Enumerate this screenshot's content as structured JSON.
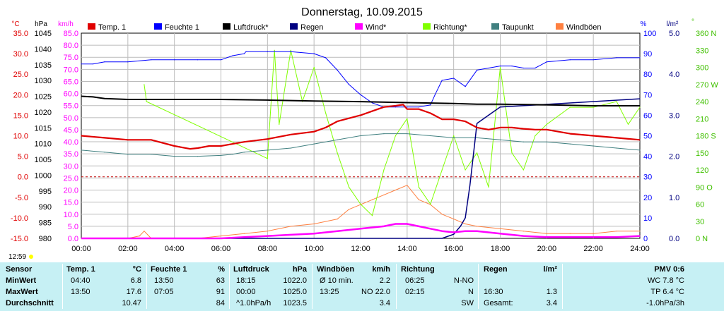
{
  "title": "Donnerstag, 10.09.2015",
  "left_units": {
    "temp": "°C",
    "pressure": "hPa",
    "wind": "km/h"
  },
  "right_units": {
    "humidity": "%",
    "rain": "l/m²",
    "direction": "°"
  },
  "time_ticks": [
    "00:00",
    "02:00",
    "04:00",
    "06:00",
    "08:00",
    "10:00",
    "12:00",
    "14:00",
    "16:00",
    "18:00",
    "20:00",
    "22:00",
    "24:00"
  ],
  "current_time": "12:59",
  "axis_ticks": {
    "temp": [
      "35.0",
      "30.0",
      "25.0",
      "20.0",
      "15.0",
      "10.0",
      "5.0",
      "0.0",
      "-5.0",
      "-10.0",
      "-15.0"
    ],
    "pressure": [
      "1045",
      "1040",
      "1035",
      "1030",
      "1025",
      "1020",
      "1015",
      "1010",
      "1005",
      "1000",
      "995",
      "990",
      "985",
      "980"
    ],
    "wind": [
      "85.0",
      "80.0",
      "75.0",
      "70.0",
      "65.0",
      "60.0",
      "55.0",
      "50.0",
      "45.0",
      "40.0",
      "35.0",
      "30.0",
      "25.0",
      "20.0",
      "15.0",
      "10.0",
      "5.0",
      "0.0"
    ],
    "humidity": [
      "100",
      "90",
      "80",
      "70",
      "60",
      "50",
      "40",
      "30",
      "20",
      "10",
      "0"
    ],
    "rain": [
      "5.0",
      "4.0",
      "3.0",
      "2.0",
      "1.0",
      "0.0"
    ],
    "direction": [
      "360 N",
      "330",
      "300",
      "270 W",
      "240",
      "210",
      "180 S",
      "150",
      "120",
      "90 O",
      "60",
      "30",
      "0 N"
    ]
  },
  "legend": [
    {
      "label": "Temp. 1",
      "color": "#e00000"
    },
    {
      "label": "Feuchte 1",
      "color": "#0000ff"
    },
    {
      "label": "Luftdruck*",
      "color": "#000000"
    },
    {
      "label": "Regen",
      "color": "#000080"
    },
    {
      "label": "Wind*",
      "color": "#ff00ff"
    },
    {
      "label": "Richtung*",
      "color": "#80ff00"
    },
    {
      "label": "Taupunkt",
      "color": "#408080"
    },
    {
      "label": "Windböen",
      "color": "#ff8040"
    }
  ],
  "colors": {
    "temp_axis": "#e00000",
    "wind_axis": "#ff00ff",
    "humidity_axis": "#0000ff",
    "rain_axis": "#000080",
    "direction_axis": "#40c000",
    "stats_bg": "#c6f0f4"
  },
  "chart_data": {
    "type": "line",
    "x_unit": "hour",
    "xlim": [
      0,
      24
    ],
    "series": [
      {
        "name": "Temp. 1",
        "axis": "temp",
        "ylim": [
          -15,
          35
        ],
        "x": [
          0,
          1,
          2,
          3,
          4,
          4.67,
          5,
          5.5,
          6,
          6.5,
          7,
          8,
          9,
          10,
          10.5,
          11,
          12,
          12.5,
          13,
          13.5,
          13.83,
          14,
          14.5,
          15,
          15.5,
          16,
          16.5,
          17,
          17.5,
          18,
          18.5,
          19,
          19.5,
          20,
          21,
          22,
          23,
          24
        ],
        "y": [
          10.0,
          9.5,
          9.0,
          9.0,
          7.5,
          6.8,
          7.0,
          7.5,
          7.5,
          8.0,
          8.5,
          9.2,
          10.3,
          11.0,
          12.0,
          13.5,
          15.0,
          16.0,
          17.0,
          17.3,
          17.6,
          16.5,
          16.5,
          15.5,
          14.0,
          14.0,
          13.5,
          12.0,
          11.5,
          12.0,
          12.0,
          11.7,
          11.5,
          11.5,
          10.5,
          10.0,
          9.5,
          9.0
        ]
      },
      {
        "name": "Feuchte 1",
        "axis": "humidity",
        "ylim": [
          0,
          100
        ],
        "x": [
          0,
          0.5,
          1,
          2,
          3,
          4,
          5,
          6,
          6.5,
          7,
          7.08,
          8,
          9,
          10,
          10.5,
          11,
          11.5,
          12,
          12.5,
          13,
          13.5,
          14,
          14.5,
          15,
          15.2,
          15.5,
          16,
          16.5,
          17,
          17.5,
          18,
          18.5,
          19,
          19.5,
          20,
          21,
          22,
          23,
          24
        ],
        "y": [
          85,
          85,
          86,
          86,
          87,
          87,
          87,
          87,
          89,
          90,
          91,
          91,
          91,
          90,
          88,
          82,
          75,
          70,
          66,
          64,
          64,
          64,
          64,
          65,
          70,
          77,
          78,
          74,
          82,
          83,
          84,
          84,
          83,
          83,
          86,
          87,
          87,
          88,
          88
        ]
      },
      {
        "name": "Luftdruck*",
        "axis": "pressure",
        "ylim": [
          980,
          1045
        ],
        "x": [
          0,
          0.5,
          1,
          2,
          3,
          4,
          5,
          6,
          8,
          10,
          12,
          14,
          16,
          17,
          18,
          20,
          22,
          23,
          24
        ],
        "y": [
          1025.0,
          1024.8,
          1024.3,
          1024.0,
          1024.0,
          1024.0,
          1024.0,
          1024.0,
          1023.8,
          1023.5,
          1023.3,
          1023.0,
          1022.7,
          1022.5,
          1022.5,
          1022.3,
          1022.0,
          1022.0,
          1022.0
        ]
      },
      {
        "name": "Regen",
        "axis": "rain",
        "ylim": [
          0,
          5
        ],
        "x": [
          0,
          15,
          15.5,
          16,
          16.3,
          16.5,
          16.7,
          17,
          17.5,
          18,
          24
        ],
        "y": [
          0,
          0,
          0,
          0.1,
          0.3,
          0.5,
          1.3,
          2.8,
          3.0,
          3.2,
          3.4
        ]
      },
      {
        "name": "Wind*",
        "axis": "wind",
        "ylim": [
          0,
          85
        ],
        "x": [
          0,
          6,
          7,
          8,
          9,
          10,
          11,
          12,
          13,
          13.5,
          14,
          14.5,
          15,
          15.5,
          16,
          16.5,
          17,
          18,
          19,
          20,
          21,
          22,
          23,
          24
        ],
        "y": [
          0,
          0,
          0.5,
          1,
          1.5,
          2,
          3,
          4,
          5,
          6,
          6,
          5,
          4,
          3,
          2.5,
          3,
          3,
          2,
          1,
          0.5,
          0.5,
          0.5,
          0.5,
          1
        ]
      },
      {
        "name": "Richtung*",
        "axis": "direction",
        "ylim": [
          0,
          360
        ],
        "x": [
          2.7,
          2.8,
          8,
          8.3,
          8.5,
          9,
          9.5,
          10,
          10.5,
          11,
          11.5,
          12,
          12.5,
          13,
          13.5,
          14,
          14.5,
          15,
          15.5,
          16,
          16.5,
          17,
          17.5,
          18,
          18.5,
          19,
          19.5,
          20,
          21,
          22,
          23,
          23.5,
          24
        ],
        "y": [
          270,
          240,
          140,
          330,
          200,
          330,
          240,
          300,
          220,
          150,
          90,
          60,
          40,
          120,
          180,
          210,
          90,
          60,
          120,
          180,
          120,
          150,
          90,
          300,
          150,
          120,
          180,
          200,
          230,
          230,
          240,
          200,
          230
        ]
      },
      {
        "name": "Taupunkt",
        "axis": "temp",
        "ylim": [
          -15,
          35
        ],
        "x": [
          0,
          1,
          2,
          3,
          4,
          5,
          6,
          6.5,
          7,
          8,
          9,
          10,
          11,
          12,
          13,
          14,
          15,
          16,
          17,
          18,
          19,
          20,
          21,
          22,
          23,
          24
        ],
        "y": [
          6.5,
          6.0,
          5.5,
          5.5,
          5.0,
          5.0,
          5.2,
          5.5,
          6.0,
          6.5,
          7.0,
          8.0,
          9.0,
          10.0,
          10.5,
          10.5,
          10.0,
          9.5,
          9.5,
          9.0,
          8.5,
          8.5,
          8.0,
          7.5,
          7.0,
          6.5
        ]
      },
      {
        "name": "Windböen",
        "axis": "wind",
        "ylim": [
          0,
          85
        ],
        "x": [
          0,
          2,
          2.5,
          2.7,
          3,
          5,
          6,
          7,
          8,
          9,
          10,
          11,
          11.5,
          12,
          12.5,
          13,
          13.5,
          14,
          14.5,
          15,
          15.5,
          16,
          16.5,
          17,
          18,
          19,
          20,
          21,
          22,
          23,
          24
        ],
        "y": [
          0,
          0,
          1,
          3,
          0,
          0,
          1,
          2,
          3,
          5,
          6,
          8,
          12,
          14,
          16,
          18,
          20,
          22,
          16,
          14,
          10,
          8,
          6,
          5,
          4,
          3,
          2,
          2,
          2,
          3,
          3
        ]
      }
    ]
  },
  "stats": {
    "headers": {
      "sensor": "Sensor",
      "temp": "Temp. 1",
      "temp_unit": "°C",
      "hum": "Feuchte 1",
      "hum_unit": "%",
      "press": "Luftdruck",
      "press_unit": "hPa",
      "wind": "Windböen",
      "wind_unit": "km/h",
      "dir": "Richtung",
      "rain": "Regen",
      "rain_unit": "l/m²",
      "pmv": "PMV 0:6"
    },
    "rows": [
      {
        "label": "MinWert",
        "temp_time": "04:40",
        "temp_val": "6.8",
        "hum_time": "13:50",
        "hum_val": "63",
        "press_time": "18:15",
        "press_val": "1022.0",
        "wind_time": "Ø 10 min.",
        "wind_val": "2.2",
        "dir_time": "06:25",
        "dir_val": "N-NO",
        "rain_time": "",
        "rain_val": "",
        "pmv": "WC 7.8 °C"
      },
      {
        "label": "MaxWert",
        "temp_time": "13:50",
        "temp_val": "17.6",
        "hum_time": "07:05",
        "hum_val": "91",
        "press_time": "00:00",
        "press_val": "1025.0",
        "wind_time": "13:25",
        "wind_val": "NO 22.0",
        "dir_time": "02:15",
        "dir_val": "N",
        "rain_time": "16:30",
        "rain_val": "1.3",
        "pmv": "TP 6.4 °C"
      },
      {
        "label": "Durchschnitt",
        "temp_time": "",
        "temp_val": "10.47",
        "hum_time": "",
        "hum_val": "84",
        "press_time": "^1.0hPa/h",
        "press_val": "1023.5",
        "wind_time": "",
        "wind_val": "3.4",
        "dir_time": "",
        "dir_val": "SW",
        "rain_time": "Gesamt:",
        "rain_val": "3.4",
        "pmv": "-1.0hPa/3h"
      }
    ]
  }
}
